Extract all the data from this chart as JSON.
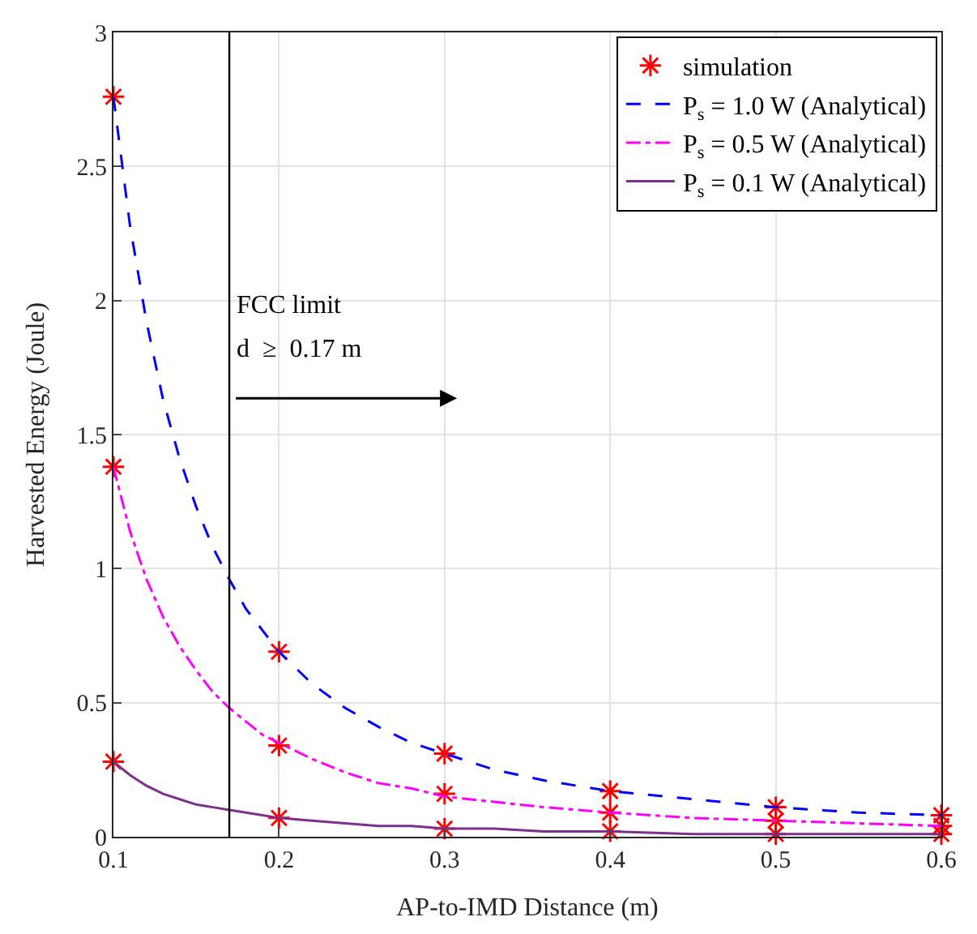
{
  "chart_data": {
    "type": "line",
    "xlabel": "AP-to-IMD Distance (m)",
    "ylabel": "Harvested Energy (Joule)",
    "xlim": [
      0.1,
      0.6
    ],
    "xticks": [
      0.1,
      0.2,
      0.3,
      0.4,
      0.5,
      0.6
    ],
    "ylim": [
      0,
      3
    ],
    "yticks": [
      0,
      0.5,
      1,
      1.5,
      2,
      2.5,
      3
    ],
    "grid": true,
    "legend": "top right",
    "x": [
      0.1,
      0.11,
      0.12,
      0.13,
      0.14,
      0.15,
      0.16,
      0.17,
      0.18,
      0.19,
      0.2,
      0.22,
      0.24,
      0.26,
      0.28,
      0.3,
      0.33,
      0.36,
      0.4,
      0.45,
      0.5,
      0.55,
      0.6
    ],
    "series": [
      {
        "name": "simulation",
        "type": "scatter",
        "marker": "cross",
        "color": "#ff0000",
        "x": [
          0.1,
          0.2,
          0.3,
          0.4,
          0.5,
          0.6,
          0.1,
          0.2,
          0.3,
          0.4,
          0.5,
          0.6,
          0.1,
          0.2,
          0.3,
          0.4,
          0.5,
          0.6
        ],
        "values": [
          2.76,
          0.69,
          0.31,
          0.17,
          0.11,
          0.08,
          1.38,
          0.34,
          0.16,
          0.09,
          0.06,
          0.04,
          0.28,
          0.07,
          0.03,
          0.02,
          0.01,
          0.01
        ]
      },
      {
        "name": "P$_{s}$ = 1.0 W (Analytical)",
        "line_style": "dashed",
        "color": "#0000ff",
        "values": [
          2.76,
          2.28,
          1.92,
          1.63,
          1.41,
          1.23,
          1.08,
          0.96,
          0.85,
          0.77,
          0.69,
          0.57,
          0.48,
          0.41,
          0.35,
          0.31,
          0.25,
          0.21,
          0.17,
          0.14,
          0.11,
          0.09,
          0.08
        ]
      },
      {
        "name": "P$_{s}$ = 0.5 W (Analytical)",
        "line_style": "dashdot",
        "color": "#ff00ff",
        "values": [
          1.38,
          1.14,
          0.96,
          0.82,
          0.71,
          0.62,
          0.54,
          0.48,
          0.43,
          0.38,
          0.35,
          0.29,
          0.24,
          0.2,
          0.18,
          0.15,
          0.13,
          0.11,
          0.09,
          0.07,
          0.06,
          0.05,
          0.04
        ]
      },
      {
        "name": "P$_{s}$ = 0.1 W (Analytical)",
        "line_style": "solid",
        "color": "#7e2f8e",
        "values": [
          0.28,
          0.23,
          0.19,
          0.16,
          0.14,
          0.12,
          0.11,
          0.1,
          0.09,
          0.08,
          0.07,
          0.06,
          0.05,
          0.04,
          0.04,
          0.03,
          0.03,
          0.02,
          0.02,
          0.01,
          0.01,
          0.01,
          0.01
        ]
      }
    ],
    "ref_lines": [
      {
        "axis": "x",
        "value": 0.17,
        "color": "#000000",
        "line_style": "solid"
      }
    ],
    "annotations": [
      "FCC limit",
      "d  ≥  0.17 m"
    ]
  }
}
